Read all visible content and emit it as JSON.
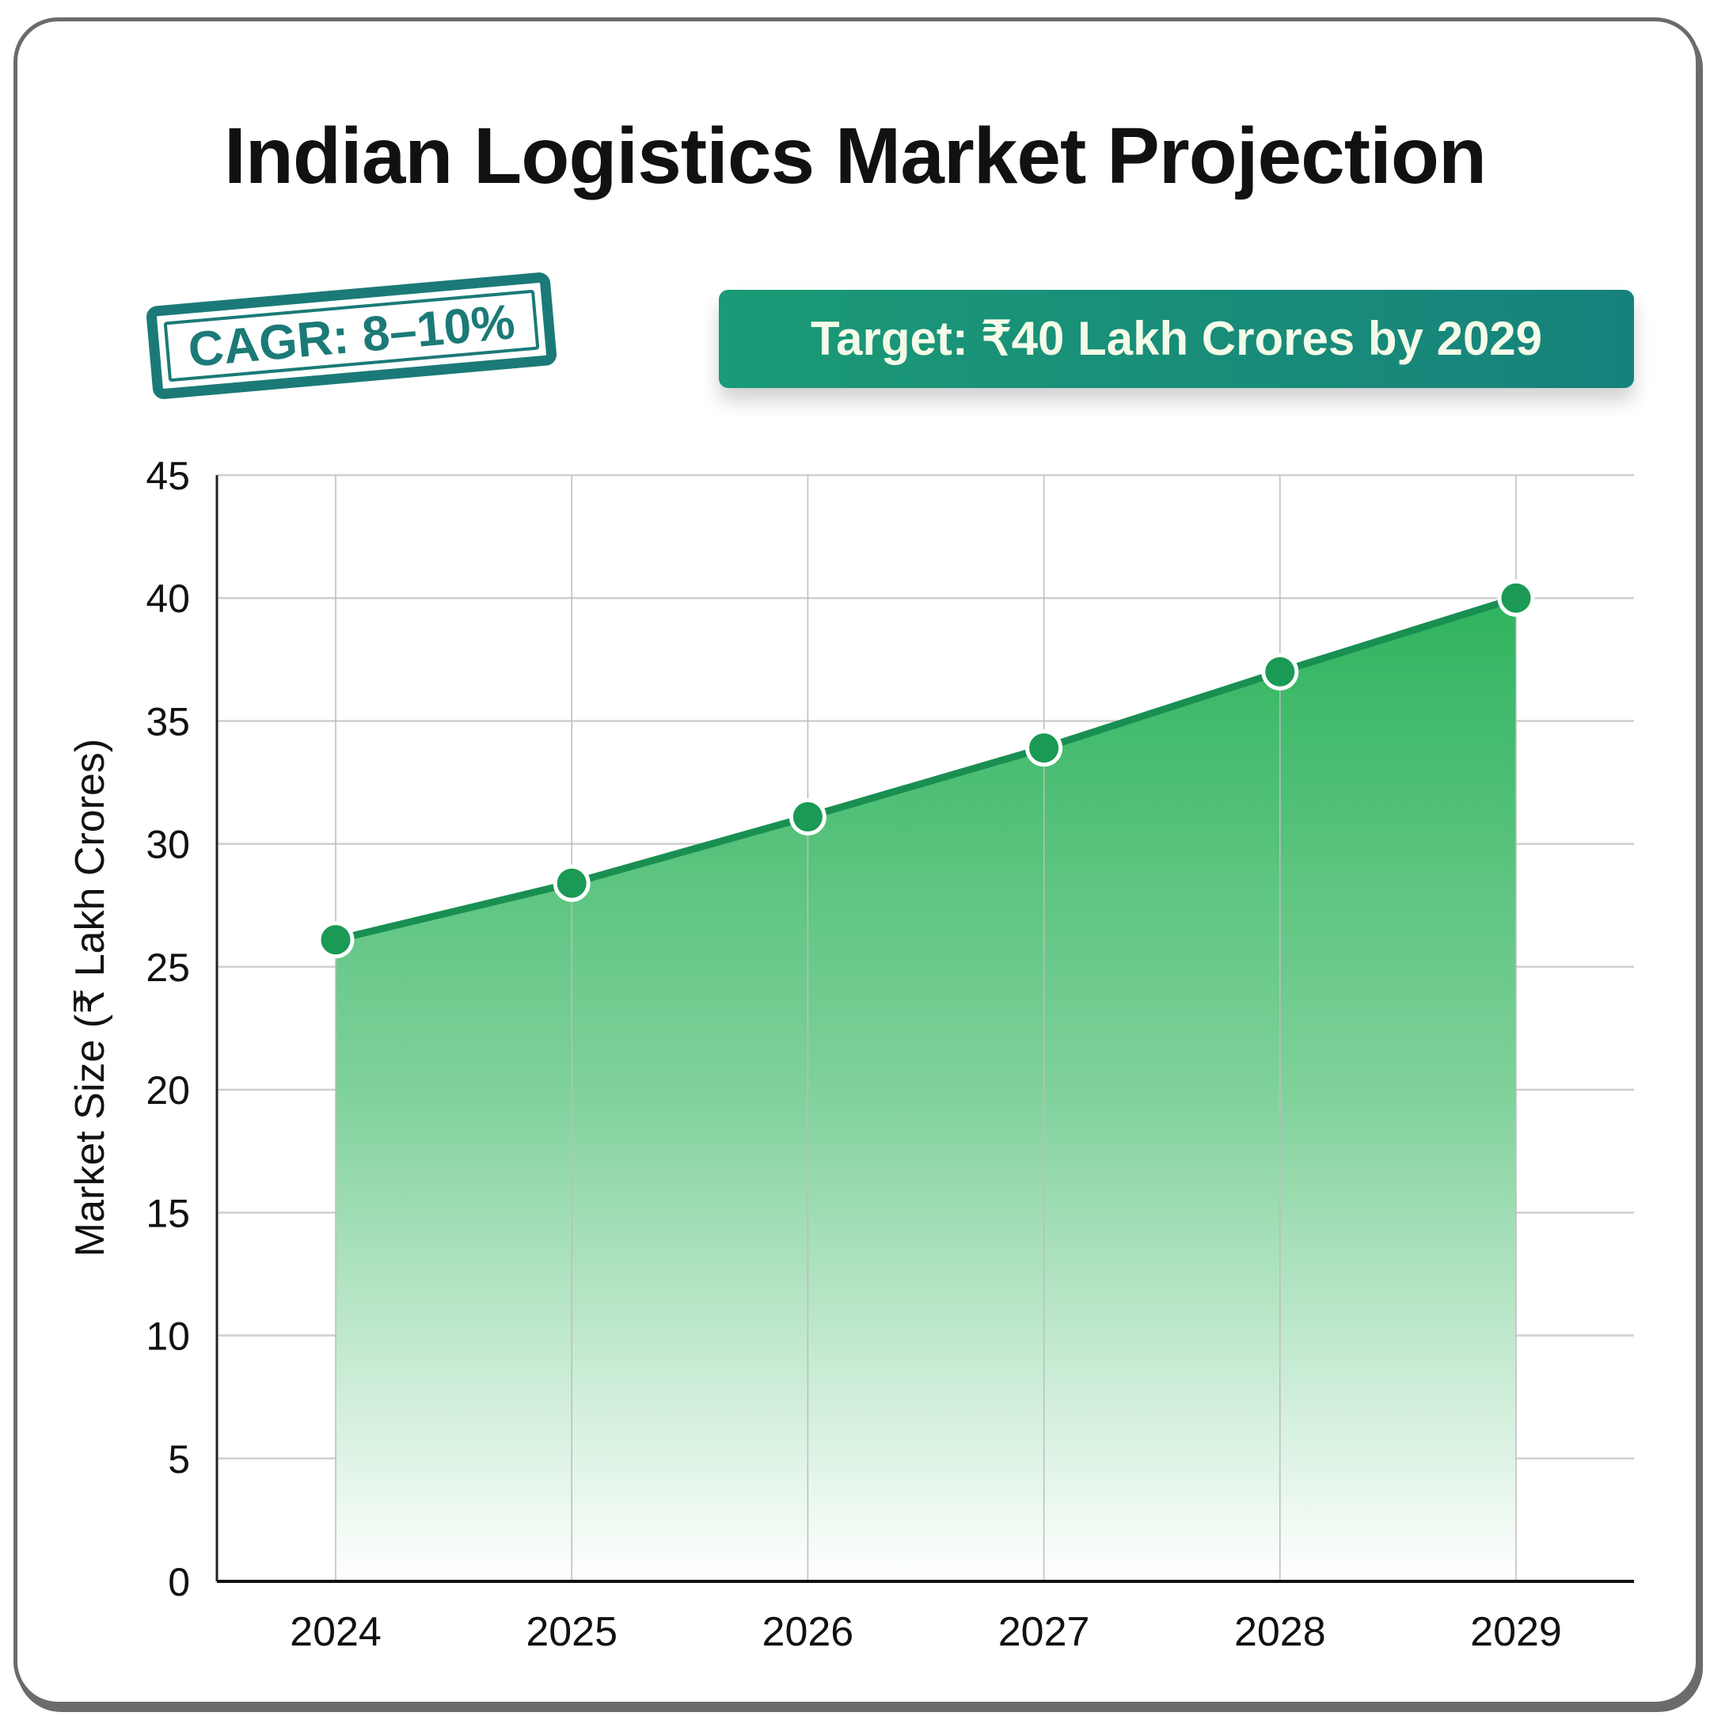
{
  "chart_data": {
    "type": "area",
    "title": "Indian Logistics Market Projection",
    "xlabel": "",
    "ylabel": "Market Size (₹ Lakh Crores)",
    "categories": [
      "2024",
      "2025",
      "2026",
      "2027",
      "2028",
      "2029"
    ],
    "values": [
      26.1,
      28.4,
      31.1,
      33.9,
      37.0,
      40.0
    ],
    "ylim": [
      0,
      45
    ],
    "yticks": [
      "0",
      "5",
      "10",
      "15",
      "20",
      "25",
      "30",
      "35",
      "40",
      "45"
    ],
    "grid": true,
    "annotations": {
      "cagr": "CAGR: 8–10%",
      "target": "Target: ₹40 Lakh Crores by 2029"
    },
    "colors": {
      "line": "#1a8f52",
      "marker": "#1a9a55",
      "fill_top": "#2fb35e",
      "badge": "#1b7a77"
    }
  }
}
